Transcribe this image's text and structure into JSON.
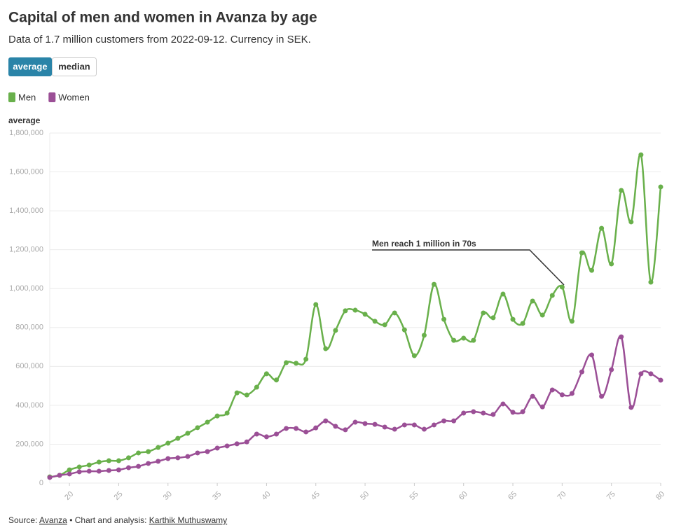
{
  "chart_data": {
    "type": "line",
    "title": "Capital of men and women in Avanza by age",
    "subtitle": "Data of 1.7 million customers from 2022-09-12. Currency in SEK.",
    "toggle": [
      "average",
      "median"
    ],
    "y_label": "average",
    "annotation": "Men reach 1 million in 70s",
    "x": [
      18,
      19,
      20,
      21,
      22,
      23,
      24,
      25,
      26,
      27,
      28,
      29,
      30,
      31,
      32,
      33,
      34,
      35,
      36,
      37,
      38,
      39,
      40,
      41,
      42,
      43,
      44,
      45,
      46,
      47,
      48,
      49,
      50,
      51,
      52,
      53,
      54,
      55,
      56,
      57,
      58,
      59,
      60,
      61,
      62,
      63,
      64,
      65,
      66,
      67,
      68,
      69,
      70,
      71,
      72,
      73,
      74,
      75,
      76,
      77,
      78,
      79,
      80
    ],
    "series": [
      {
        "name": "Men",
        "color": "#69b04b",
        "values": [
          32000,
          40000,
          68000,
          83000,
          93000,
          108000,
          115000,
          115000,
          130000,
          155000,
          162000,
          183000,
          205000,
          230000,
          256000,
          285000,
          313000,
          345000,
          360000,
          464000,
          453000,
          493000,
          562000,
          530000,
          619000,
          616000,
          637000,
          918000,
          691000,
          785000,
          886000,
          889000,
          868000,
          832000,
          814000,
          875000,
          788000,
          655000,
          760000,
          1022000,
          842000,
          734000,
          745000,
          734000,
          875000,
          850000,
          972000,
          842000,
          821000,
          936000,
          864000,
          965000,
          1008000,
          832000,
          1184000,
          1094000,
          1310000,
          1127000,
          1505000,
          1343000,
          1688000,
          1033000,
          1523000
        ]
      },
      {
        "name": "Women",
        "color": "#9b4f96",
        "values": [
          29000,
          40000,
          47000,
          58000,
          61000,
          61000,
          65000,
          68000,
          79000,
          86000,
          101000,
          112000,
          126000,
          130000,
          137000,
          155000,
          162000,
          180000,
          191000,
          202000,
          212000,
          252000,
          238000,
          252000,
          281000,
          281000,
          263000,
          284000,
          320000,
          292000,
          274000,
          313000,
          306000,
          302000,
          288000,
          277000,
          299000,
          299000,
          277000,
          299000,
          320000,
          320000,
          360000,
          367000,
          360000,
          353000,
          407000,
          364000,
          367000,
          446000,
          392000,
          479000,
          454000,
          461000,
          572000,
          659000,
          446000,
          583000,
          752000,
          389000,
          562000,
          562000,
          529000
        ]
      }
    ],
    "xlim": [
      18,
      80
    ],
    "xticks": [
      20,
      25,
      30,
      35,
      40,
      45,
      50,
      55,
      60,
      65,
      70,
      75,
      80
    ],
    "ylim": [
      0,
      1800000
    ],
    "yticks": [
      0,
      {
        "value": 200000,
        "label": "200,000"
      },
      {
        "value": 400000,
        "label": "400,000"
      },
      {
        "value": 600000,
        "label": "600,000"
      },
      {
        "value": 800000,
        "label": "800,000"
      },
      {
        "value": 1000000,
        "label": "1,000,000"
      },
      {
        "value": 1200000,
        "label": "1,200,000"
      },
      {
        "value": 1400000,
        "label": "1,400,000"
      },
      {
        "value": 1600000,
        "label": "1,600,000"
      },
      {
        "value": 1800000,
        "label": "1,800,000"
      }
    ],
    "grid": true,
    "footer": {
      "source_label": "Source:",
      "source": "Avanza",
      "credit_label": "• Chart and analysis:",
      "author": "Karthik Muthuswamy"
    }
  }
}
